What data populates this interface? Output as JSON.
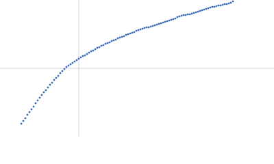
{
  "chart_data": {
    "type": "scatter",
    "x": [
      -84,
      -81,
      -78,
      -75,
      -72,
      -69,
      -66,
      -63,
      -60,
      -57,
      -54,
      -51,
      -48,
      -45,
      -42,
      -39,
      -36,
      -33,
      -30,
      -27,
      -24,
      -21,
      -18,
      -15,
      -12,
      -9,
      -6,
      -3,
      0,
      3,
      6,
      9,
      12,
      15,
      18,
      21,
      24,
      27,
      30,
      33,
      36,
      39,
      42,
      45,
      48,
      51,
      54,
      57,
      60,
      63,
      66,
      69,
      72,
      75,
      78,
      81,
      84,
      87,
      90,
      93,
      96,
      99,
      102,
      105,
      108,
      111,
      114,
      117,
      120,
      123,
      126,
      129,
      132,
      135,
      138,
      141,
      144,
      147,
      150,
      153,
      156,
      159,
      162,
      165,
      168,
      171,
      174,
      177,
      180,
      183,
      186,
      189,
      192,
      195,
      198,
      201,
      204,
      207,
      210,
      213,
      216,
      219,
      222,
      225
    ],
    "values": [
      -81,
      -77,
      -73,
      -68,
      -64,
      -60,
      -56,
      -51,
      -47,
      -43,
      -39,
      -35,
      -32,
      -28,
      -24,
      -21,
      -17,
      -14,
      -11,
      -7,
      -4,
      -1,
      2,
      4,
      6,
      8,
      10,
      12,
      14,
      16,
      18,
      19,
      21,
      23,
      25,
      26,
      28,
      30,
      31,
      33,
      34,
      36,
      37,
      38,
      40,
      41,
      42,
      44,
      45,
      46,
      47,
      49,
      50,
      51,
      52,
      53,
      55,
      56,
      57,
      58,
      59,
      60,
      60,
      61,
      62,
      63,
      64,
      65,
      66,
      67,
      68,
      69,
      70,
      71,
      72,
      73,
      75,
      76,
      77,
      78,
      78,
      79,
      79,
      80,
      81,
      82,
      83,
      84,
      85,
      86,
      87,
      88,
      89,
      90,
      90,
      91,
      92,
      92,
      93,
      94,
      94,
      95,
      96,
      98
    ],
    "color": "#3a6db5",
    "xlim": [
      -115,
      285
    ],
    "ylim": [
      -100,
      100
    ]
  }
}
